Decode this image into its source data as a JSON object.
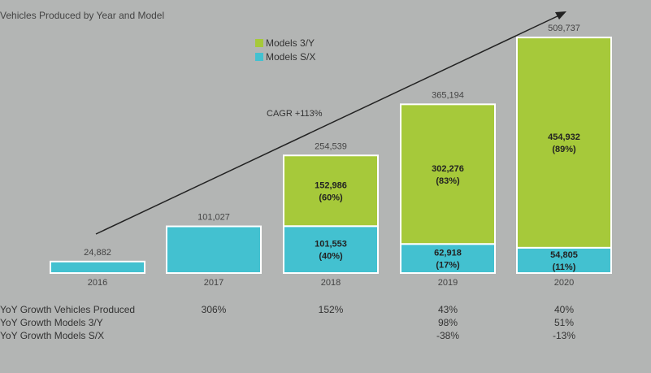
{
  "title": "Vehicles Produced by Year and Model",
  "legend": [
    {
      "label": "Models 3/Y",
      "color": "#a6c93a"
    },
    {
      "label": "Models S/X",
      "color": "#43c1d0"
    }
  ],
  "annotation": "CAGR +113%",
  "chart_data": {
    "type": "bar",
    "stacked": true,
    "categories": [
      "2016",
      "2017",
      "2018",
      "2019",
      "2020"
    ],
    "series": [
      {
        "name": "Models S/X",
        "color": "#43c1d0",
        "values": [
          24882,
          101027,
          101553,
          62918,
          54805
        ],
        "labels": [
          "",
          "",
          "101,553\n(40%)",
          "62,918\n(17%)",
          "54,805\n(11%)"
        ]
      },
      {
        "name": "Models 3/Y",
        "color": "#a6c93a",
        "values": [
          0,
          0,
          152986,
          302276,
          454932
        ],
        "labels": [
          "",
          "",
          "152,986\n(60%)",
          "302,276\n(83%)",
          "454,932\n(89%)"
        ]
      }
    ],
    "totals": [
      "24,882",
      "101,027",
      "254,539",
      "365,194",
      "509,737"
    ],
    "ylim": [
      0,
      510000
    ],
    "grid": false,
    "legend_position": "top-center"
  },
  "growth_rows": [
    {
      "label": "YoY Growth Vehicles Produced",
      "values": [
        "",
        "306%",
        "152%",
        "43%",
        "40%"
      ]
    },
    {
      "label": "YoY Growth Models 3/Y",
      "values": [
        "",
        "",
        "",
        "98%",
        "51%"
      ]
    },
    {
      "label": "YoY Growth Models S/X",
      "values": [
        "",
        "",
        "",
        "-38%",
        "-13%"
      ]
    }
  ]
}
